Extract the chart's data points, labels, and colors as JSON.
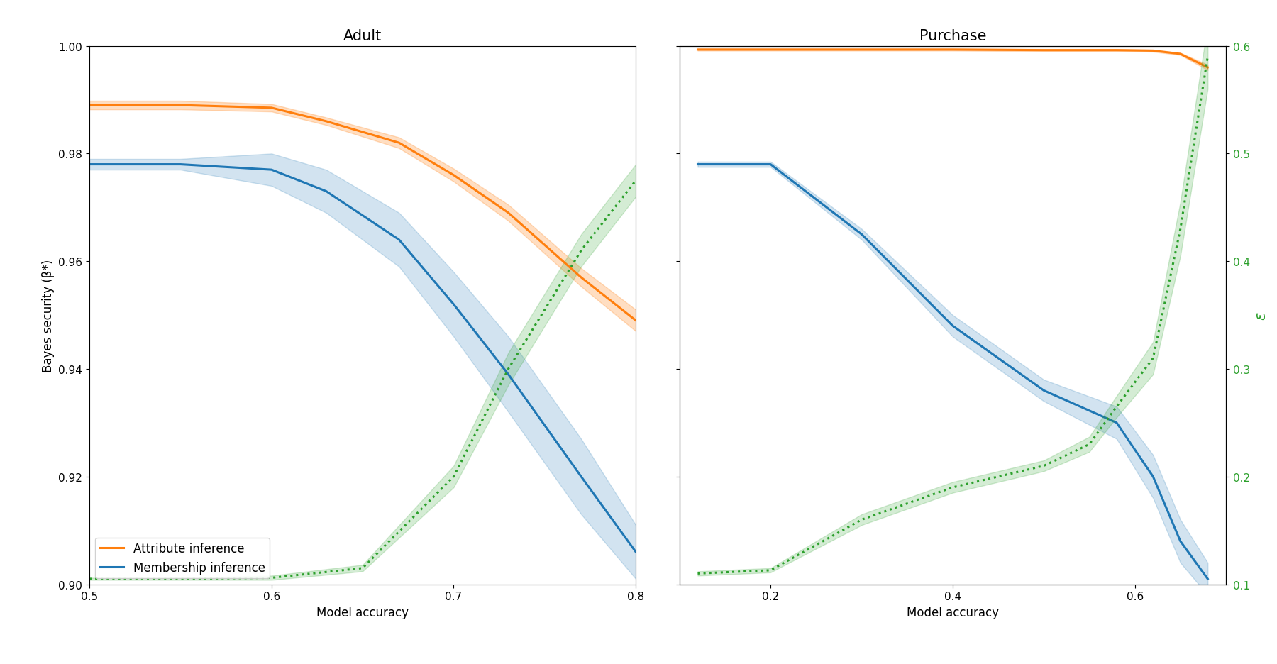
{
  "adult": {
    "title": "Adult",
    "xlabel": "Model accuracy",
    "ylabel": "Bayes security (β*)",
    "xlim": [
      0.5,
      0.8
    ],
    "ylim": [
      0.9,
      1.0
    ],
    "xticks": [
      0.5,
      0.6,
      0.7,
      0.8
    ],
    "yticks": [
      0.9,
      0.92,
      0.94,
      0.96,
      0.98,
      1.0
    ],
    "attr_x": [
      0.5,
      0.55,
      0.6,
      0.63,
      0.67,
      0.7,
      0.73,
      0.77,
      0.8
    ],
    "attr_y": [
      0.989,
      0.989,
      0.9885,
      0.986,
      0.982,
      0.976,
      0.969,
      0.957,
      0.949
    ],
    "attr_y_low": [
      0.9882,
      0.9882,
      0.9878,
      0.9853,
      0.981,
      0.9748,
      0.9675,
      0.9553,
      0.947
    ],
    "attr_y_high": [
      0.9898,
      0.9898,
      0.9892,
      0.9867,
      0.983,
      0.9772,
      0.9705,
      0.9587,
      0.951
    ],
    "memb_x": [
      0.5,
      0.55,
      0.6,
      0.63,
      0.67,
      0.7,
      0.73,
      0.77,
      0.8
    ],
    "memb_y": [
      0.978,
      0.978,
      0.977,
      0.973,
      0.964,
      0.952,
      0.939,
      0.92,
      0.906
    ],
    "memb_y_low": [
      0.977,
      0.977,
      0.974,
      0.969,
      0.959,
      0.946,
      0.932,
      0.913,
      0.901
    ],
    "memb_y_high": [
      0.979,
      0.979,
      0.98,
      0.977,
      0.969,
      0.958,
      0.946,
      0.927,
      0.911
    ],
    "dp_x": [
      0.5,
      0.55,
      0.6,
      0.65,
      0.7,
      0.73,
      0.77,
      0.8
    ],
    "dp_y": [
      0.901,
      0.901,
      0.9012,
      0.903,
      0.92,
      0.94,
      0.962,
      0.975
    ],
    "dp_y_low": [
      0.9008,
      0.9008,
      0.9008,
      0.9024,
      0.918,
      0.937,
      0.959,
      0.972
    ],
    "dp_y_high": [
      0.9012,
      0.9012,
      0.9016,
      0.9036,
      0.922,
      0.943,
      0.965,
      0.978
    ]
  },
  "purchase": {
    "title": "Purchase",
    "xlabel": "Model accuracy",
    "ylabel_right": "ε",
    "xlim": [
      0.1,
      0.7
    ],
    "ylim": [
      0.9,
      1.0
    ],
    "ylim_right": [
      0.1,
      0.6
    ],
    "xticks": [
      0.2,
      0.4,
      0.6
    ],
    "yticks": [
      0.9,
      0.92,
      0.94,
      0.96,
      0.98,
      1.0
    ],
    "yticks_right": [
      0.1,
      0.2,
      0.3,
      0.4,
      0.5,
      0.6
    ],
    "attr_x": [
      0.12,
      0.2,
      0.3,
      0.4,
      0.5,
      0.58,
      0.62,
      0.65,
      0.68
    ],
    "attr_y": [
      0.9993,
      0.9993,
      0.9993,
      0.9993,
      0.9992,
      0.9992,
      0.9991,
      0.9985,
      0.996
    ],
    "attr_y_low": [
      0.9991,
      0.9991,
      0.9991,
      0.9991,
      0.999,
      0.999,
      0.9989,
      0.9983,
      0.9955
    ],
    "attr_y_high": [
      0.9995,
      0.9995,
      0.9995,
      0.9995,
      0.9994,
      0.9994,
      0.9993,
      0.9987,
      0.9965
    ],
    "memb_x": [
      0.12,
      0.2,
      0.3,
      0.4,
      0.5,
      0.58,
      0.62,
      0.65,
      0.68
    ],
    "memb_y": [
      0.978,
      0.978,
      0.965,
      0.948,
      0.936,
      0.93,
      0.92,
      0.908,
      0.901
    ],
    "memb_y_low": [
      0.9775,
      0.9775,
      0.964,
      0.946,
      0.934,
      0.927,
      0.916,
      0.904,
      0.898
    ],
    "memb_y_high": [
      0.9785,
      0.9785,
      0.966,
      0.95,
      0.938,
      0.933,
      0.924,
      0.912,
      0.904
    ],
    "dp_x": [
      0.12,
      0.2,
      0.3,
      0.4,
      0.5,
      0.55,
      0.58,
      0.62,
      0.65,
      0.68
    ],
    "dp_y_right": [
      0.11,
      0.113,
      0.16,
      0.19,
      0.21,
      0.23,
      0.265,
      0.31,
      0.43,
      0.59
    ],
    "dp_y_right_low": [
      0.108,
      0.111,
      0.155,
      0.185,
      0.205,
      0.223,
      0.255,
      0.295,
      0.405,
      0.56
    ],
    "dp_y_right_high": [
      0.112,
      0.115,
      0.165,
      0.195,
      0.215,
      0.237,
      0.275,
      0.325,
      0.455,
      0.62
    ]
  },
  "orange_color": "#ff7f0e",
  "blue_color": "#1f77b4",
  "green_color": "#2ca02c",
  "orange_alpha": 0.25,
  "blue_alpha": 0.2,
  "green_alpha": 0.2,
  "lw": 2.2,
  "title_fontsize": 15,
  "label_fontsize": 12,
  "tick_fontsize": 11
}
